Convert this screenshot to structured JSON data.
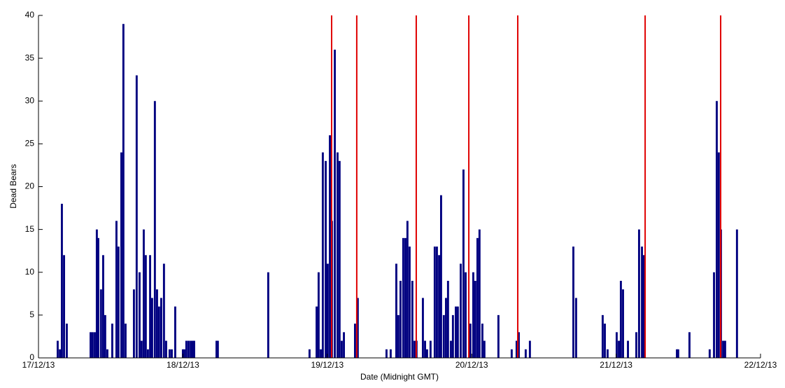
{
  "chart_data": {
    "type": "bar",
    "xlabel": "Date (Midnight GMT)",
    "ylabel": "Dead Bears",
    "color": "#000080",
    "x": [
      0.126,
      0.141,
      0.155,
      0.17,
      0.189,
      0.354,
      0.368,
      0.383,
      0.397,
      0.407,
      0.426,
      0.441,
      0.455,
      0.47,
      0.504,
      0.533,
      0.547,
      0.567,
      0.581,
      0.596,
      0.654,
      0.673,
      0.693,
      0.707,
      0.722,
      0.736,
      0.751,
      0.766,
      0.78,
      0.799,
      0.814,
      0.828,
      0.843,
      0.862,
      0.877,
      0.901,
      0.916,
      0.94,
      0.993,
      1.003,
      1.017,
      1.032,
      1.047,
      1.061,
      1.071,
      1.226,
      1.235,
      1.584,
      1.87,
      1.919,
      1.933,
      1.948,
      1.962,
      1.982,
      1.996,
      2.011,
      2.025,
      2.045,
      2.064,
      2.078,
      2.093,
      2.108,
      2.185,
      2.204,
      2.403,
      2.432,
      2.471,
      2.485,
      2.5,
      2.519,
      2.534,
      2.548,
      2.563,
      2.582,
      2.597,
      2.611,
      2.655,
      2.67,
      2.684,
      2.708,
      2.737,
      2.752,
      2.767,
      2.781,
      2.8,
      2.815,
      2.829,
      2.849,
      2.863,
      2.883,
      2.897,
      2.917,
      2.936,
      2.951,
      2.984,
      3.004,
      3.018,
      3.033,
      3.047,
      3.067,
      3.081,
      3.178,
      3.27,
      3.304,
      3.319,
      3.367,
      3.396,
      3.697,
      3.716,
      3.9,
      3.915,
      3.934,
      3.997,
      4.012,
      4.026,
      4.041,
      4.075,
      4.133,
      4.152,
      4.172,
      4.186,
      4.414,
      4.423,
      4.501,
      4.641,
      4.671,
      4.69,
      4.704,
      4.719,
      4.734,
      4.748,
      4.83
    ],
    "values": [
      2,
      1,
      18,
      12,
      4,
      3,
      3,
      3,
      15,
      14,
      8,
      12,
      5,
      1,
      4,
      16,
      13,
      24,
      39,
      4,
      8,
      33,
      10,
      2,
      15,
      12,
      1,
      12,
      7,
      30,
      8,
      6,
      7,
      11,
      2,
      1,
      1,
      6,
      1,
      1,
      2,
      2,
      2,
      2,
      2,
      2,
      2,
      10,
      1,
      6,
      10,
      1,
      24,
      23,
      11,
      26,
      16,
      36,
      24,
      23,
      2,
      3,
      4,
      7,
      1,
      1,
      11,
      5,
      9,
      14,
      14,
      16,
      13,
      9,
      2,
      2,
      7,
      2,
      1,
      2,
      13,
      13,
      12,
      19,
      5,
      7,
      9,
      2,
      5,
      6,
      6,
      11,
      22,
      10,
      4,
      10,
      9,
      14,
      15,
      4,
      2,
      5,
      1,
      2,
      3,
      1,
      2,
      13,
      7,
      5,
      4,
      1,
      3,
      2,
      9,
      8,
      2,
      3,
      15,
      13,
      12,
      1,
      1,
      3,
      1,
      10,
      30,
      24,
      15,
      2,
      2,
      15
    ],
    "vlines": {
      "color": "#e00000",
      "x": [
        2.03,
        2.204,
        2.616,
        2.98,
        3.319,
        4.201,
        4.724
      ]
    },
    "xlim": [
      0,
      5
    ],
    "xticks": [
      {
        "value": 0,
        "label": "17/12/13"
      },
      {
        "value": 1,
        "label": "18/12/13"
      },
      {
        "value": 2,
        "label": "19/12/13"
      },
      {
        "value": 3,
        "label": "20/12/13"
      },
      {
        "value": 4,
        "label": "21/12/13"
      },
      {
        "value": 5,
        "label": "22/12/13"
      }
    ],
    "ylim": [
      0,
      40
    ],
    "yticks": [
      0,
      5,
      10,
      15,
      20,
      25,
      30,
      35,
      40
    ]
  }
}
